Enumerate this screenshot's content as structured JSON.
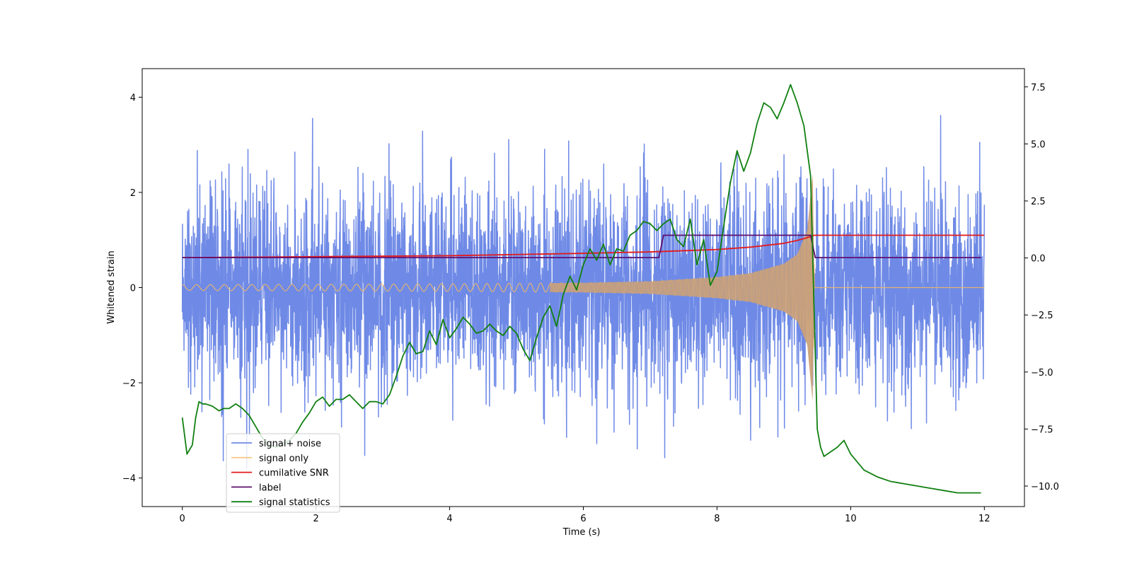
{
  "chart_data": {
    "type": "line",
    "xlabel": "Time (s)",
    "ylabel": "Whitened strain",
    "xlim": [
      -0.6,
      12.6
    ],
    "ylim_left": [
      -4.6,
      4.6
    ],
    "ylim_right": [
      -10.9,
      8.3
    ],
    "x_ticks": [
      0,
      2,
      4,
      6,
      8,
      10,
      12
    ],
    "y_ticks_left": [
      -4,
      -2,
      0,
      2,
      4
    ],
    "y_ticks_right": [
      -10.0,
      -7.5,
      -5.0,
      -2.5,
      0.0,
      2.5,
      5.0,
      7.5
    ],
    "x_tick_labels": [
      "0",
      "2",
      "4",
      "6",
      "8",
      "10",
      "12"
    ],
    "y_tick_labels_left": [
      "−4",
      "−2",
      "0",
      "2",
      "4"
    ],
    "y_tick_labels_right": [
      "−10.0",
      "−7.5",
      "−5.0",
      "−2.5",
      "0.0",
      "2.5",
      "5.0",
      "7.5"
    ],
    "legend_position": "lower-left",
    "series": [
      {
        "name": "signal+ noise",
        "axis": "left",
        "color": "#6f8ae6",
        "style": "noise band, approx. Gaussian, peaks reaching about ±4",
        "x_range": [
          0,
          12
        ]
      },
      {
        "name": "signal only",
        "axis": "left",
        "color": "#f5b860",
        "style": "chirp oscillation growing in amplitude, zero after merger",
        "x_range": [
          0,
          12
        ],
        "amplitude_envelope": {
          "t": [
            0,
            2,
            4,
            6,
            7,
            8,
            8.5,
            9,
            9.2,
            9.35,
            9.43,
            9.46,
            12
          ],
          "amp": [
            0.06,
            0.07,
            0.08,
            0.1,
            0.13,
            0.22,
            0.3,
            0.5,
            0.7,
            1.2,
            2.4,
            0.0,
            0.0
          ]
        }
      },
      {
        "name": "cumilative SNR",
        "axis": "left",
        "color": "#e31a1c",
        "x": [
          0,
          2,
          4,
          6,
          7,
          8,
          8.5,
          9,
          9.2,
          9.35,
          9.43,
          9.46,
          12
        ],
        "y": [
          0.63,
          0.65,
          0.67,
          0.72,
          0.75,
          0.8,
          0.85,
          0.93,
          0.99,
          1.05,
          1.09,
          1.1,
          1.1
        ]
      },
      {
        "name": "label",
        "axis": "left",
        "color": "#5e0f6e",
        "x": [
          0,
          7.13,
          7.2,
          9.4,
          9.47,
          11.95
        ],
        "y": [
          0.63,
          0.63,
          1.1,
          1.1,
          0.63,
          0.63
        ]
      },
      {
        "name": "signal statistics",
        "axis": "right",
        "color": "#118011",
        "x": [
          0,
          0.07,
          0.15,
          0.2,
          0.25,
          0.3,
          0.35,
          0.45,
          0.55,
          0.62,
          0.7,
          0.8,
          0.9,
          1.0,
          1.1,
          1.2,
          1.3,
          1.4,
          1.5,
          1.6,
          1.7,
          1.8,
          1.9,
          2.0,
          2.1,
          2.2,
          2.3,
          2.4,
          2.5,
          2.6,
          2.7,
          2.8,
          2.9,
          3.0,
          3.1,
          3.2,
          3.3,
          3.4,
          3.5,
          3.6,
          3.7,
          3.8,
          3.9,
          4.0,
          4.1,
          4.2,
          4.3,
          4.4,
          4.5,
          4.6,
          4.7,
          4.8,
          4.9,
          5.0,
          5.1,
          5.2,
          5.3,
          5.4,
          5.5,
          5.6,
          5.7,
          5.8,
          5.9,
          6.0,
          6.1,
          6.2,
          6.3,
          6.4,
          6.5,
          6.6,
          6.7,
          6.8,
          6.9,
          7.0,
          7.1,
          7.2,
          7.3,
          7.4,
          7.5,
          7.6,
          7.7,
          7.8,
          7.9,
          8.0,
          8.1,
          8.2,
          8.3,
          8.4,
          8.5,
          8.6,
          8.7,
          8.8,
          8.9,
          9.0,
          9.1,
          9.2,
          9.3,
          9.4,
          9.45,
          9.5,
          9.55,
          9.6,
          9.7,
          9.8,
          9.9,
          10.0,
          10.2,
          10.4,
          10.6,
          10.8,
          11.0,
          11.2,
          11.4,
          11.6,
          11.8,
          11.95
        ],
        "y": [
          -7.0,
          -8.6,
          -8.2,
          -7.0,
          -6.3,
          -6.4,
          -6.4,
          -6.5,
          -6.7,
          -6.6,
          -6.6,
          -6.4,
          -6.6,
          -6.9,
          -7.4,
          -7.9,
          -8.2,
          -8.3,
          -8.2,
          -8.0,
          -7.7,
          -7.2,
          -6.8,
          -6.3,
          -6.1,
          -6.5,
          -6.2,
          -6.2,
          -6.0,
          -6.3,
          -6.6,
          -6.3,
          -6.3,
          -6.4,
          -6.0,
          -5.2,
          -4.3,
          -3.7,
          -4.2,
          -4.1,
          -3.2,
          -3.8,
          -2.7,
          -3.5,
          -3.1,
          -2.6,
          -2.9,
          -3.3,
          -3.2,
          -2.9,
          -3.2,
          -3.4,
          -3.0,
          -3.3,
          -4.0,
          -4.5,
          -3.5,
          -2.6,
          -2.1,
          -3.0,
          -1.6,
          -0.8,
          -1.4,
          -0.3,
          0.4,
          -0.1,
          0.6,
          -0.3,
          0.4,
          0.3,
          1.0,
          1.2,
          1.6,
          1.5,
          1.2,
          1.5,
          1.7,
          0.8,
          0.5,
          1.7,
          -0.3,
          0.8,
          -1.2,
          -0.6,
          1.4,
          3.3,
          4.7,
          3.8,
          4.6,
          5.9,
          6.8,
          6.6,
          6.1,
          6.8,
          7.6,
          6.8,
          5.8,
          3.6,
          -2.0,
          -7.5,
          -8.3,
          -8.7,
          -8.5,
          -8.3,
          -8.0,
          -8.6,
          -9.3,
          -9.6,
          -9.8,
          -9.9,
          -10.0,
          -10.1,
          -10.2,
          -10.3,
          -10.3,
          -10.3
        ]
      }
    ]
  }
}
